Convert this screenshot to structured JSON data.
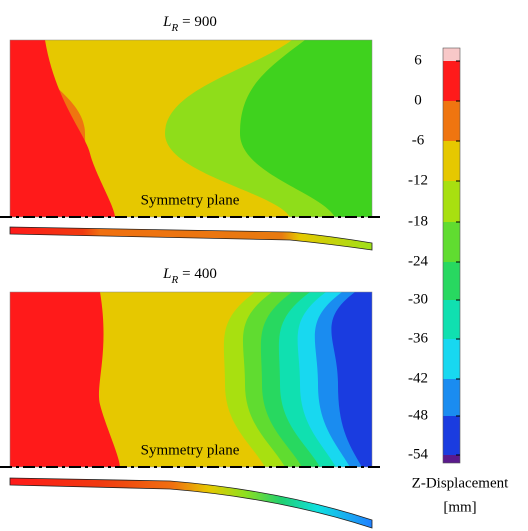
{
  "panels": [
    {
      "title": {
        "symbol": "L",
        "subscript": "R",
        "value": "= 900"
      },
      "label": "Symmetry plane"
    },
    {
      "title": {
        "symbol": "L",
        "subscript": "R",
        "value": "= 400"
      },
      "label": "Symmetry plane"
    }
  ],
  "colorbar": {
    "ticks": [
      "6",
      "0",
      "-6",
      "-12",
      "-18",
      "-24",
      "-30",
      "-36",
      "-42",
      "-48",
      "-54"
    ],
    "title": "Z-Displacement",
    "unit": "[mm]"
  }
}
